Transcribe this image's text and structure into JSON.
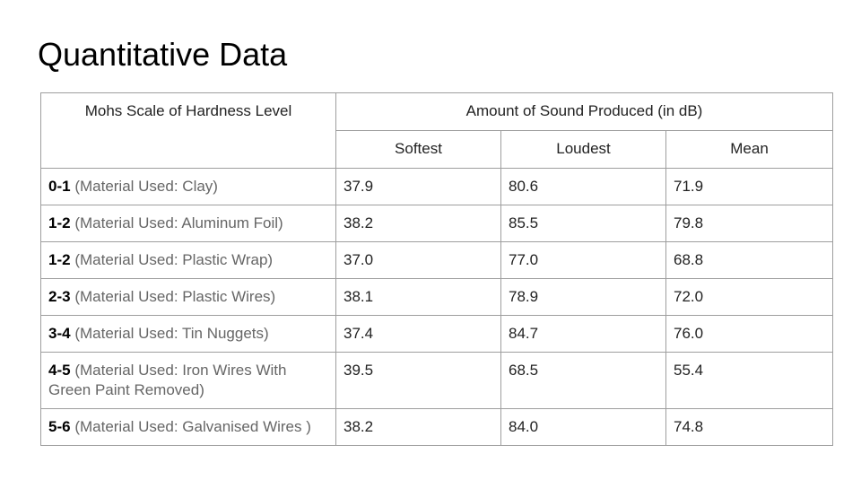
{
  "title": "Quantitative Data",
  "table": {
    "header": {
      "hardness": "Mohs Scale of Hardness Level",
      "sound": "Amount of Sound Produced (in dB)",
      "softest": "Softest",
      "loudest": "Loudest",
      "mean": "Mean"
    },
    "rows": [
      {
        "level": "0-1",
        "material": "(Material Used: Clay)",
        "softest": "37.9",
        "loudest": "80.6",
        "mean": "71.9"
      },
      {
        "level": "1-2",
        "material": "(Material Used: Aluminum Foil)",
        "softest": "38.2",
        "loudest": "85.5",
        "mean": "79.8"
      },
      {
        "level": "1-2",
        "material": "(Material Used: Plastic Wrap)",
        "softest": "37.0",
        "loudest": "77.0",
        "mean": "68.8"
      },
      {
        "level": "2-3",
        "material": "(Material Used: Plastic Wires)",
        "softest": "38.1",
        "loudest": "78.9",
        "mean": "72.0"
      },
      {
        "level": "3-4",
        "material": "(Material Used: Tin Nuggets)",
        "softest": "37.4",
        "loudest": "84.7",
        "mean": "76.0"
      },
      {
        "level": "4-5",
        "material": "(Material Used: Iron Wires With Green Paint Removed)",
        "softest": "39.5",
        "loudest": "68.5",
        "mean": "55.4"
      },
      {
        "level": "5-6",
        "material": "(Material Used: Galvanised Wires )",
        "softest": "38.2",
        "loudest": "84.0",
        "mean": "74.8"
      }
    ]
  }
}
